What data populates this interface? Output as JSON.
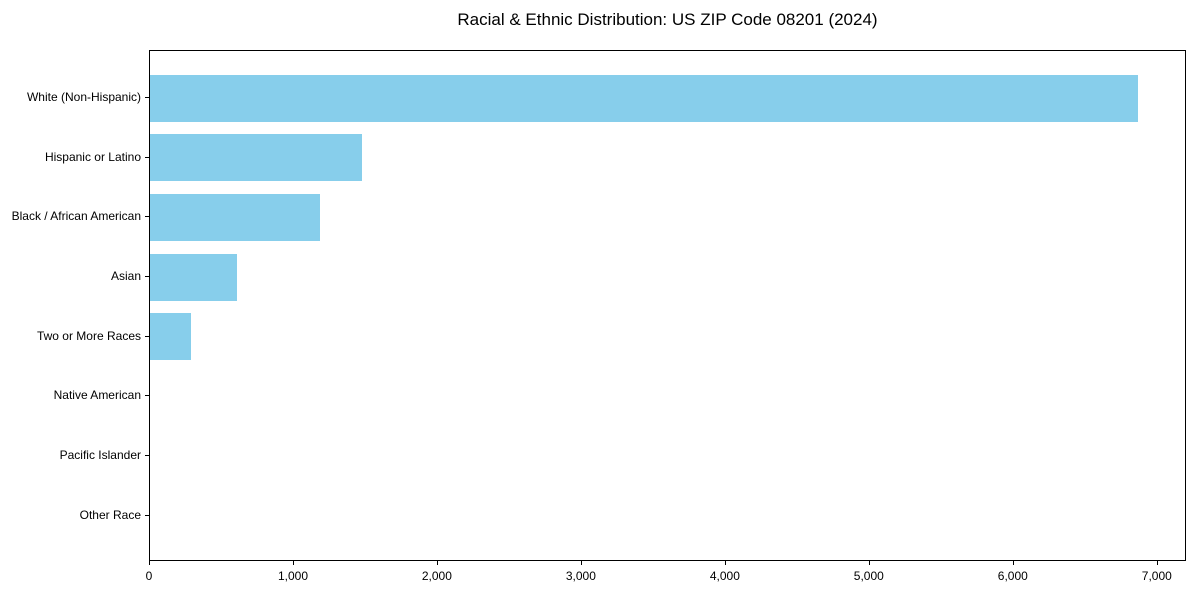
{
  "title": "Racial & Ethnic Distribution: US ZIP Code 08201 (2024)",
  "colors": {
    "bar": "#87CEEB",
    "axis": "#000000",
    "text": "#000000",
    "background": "#ffffff"
  },
  "chart_data": {
    "type": "bar",
    "orientation": "horizontal",
    "title": "Racial & Ethnic Distribution: US ZIP Code 08201 (2024)",
    "categories": [
      "White (Non-Hispanic)",
      "Hispanic or Latino",
      "Black / African American",
      "Asian",
      "Two or More Races",
      "Native American",
      "Pacific Islander",
      "Other Race"
    ],
    "values": [
      6860,
      1470,
      1180,
      605,
      285,
      0,
      0,
      0
    ],
    "xlabel": "",
    "ylabel": "",
    "xlim": [
      0,
      7203
    ],
    "xticks": [
      0,
      1000,
      2000,
      3000,
      4000,
      5000,
      6000,
      7000
    ],
    "xtick_labels": [
      "0",
      "1,000",
      "2,000",
      "3,000",
      "4,000",
      "5,000",
      "6,000",
      "7,000"
    ],
    "bar_color": "#87CEEB",
    "grid": false,
    "legend": null
  }
}
